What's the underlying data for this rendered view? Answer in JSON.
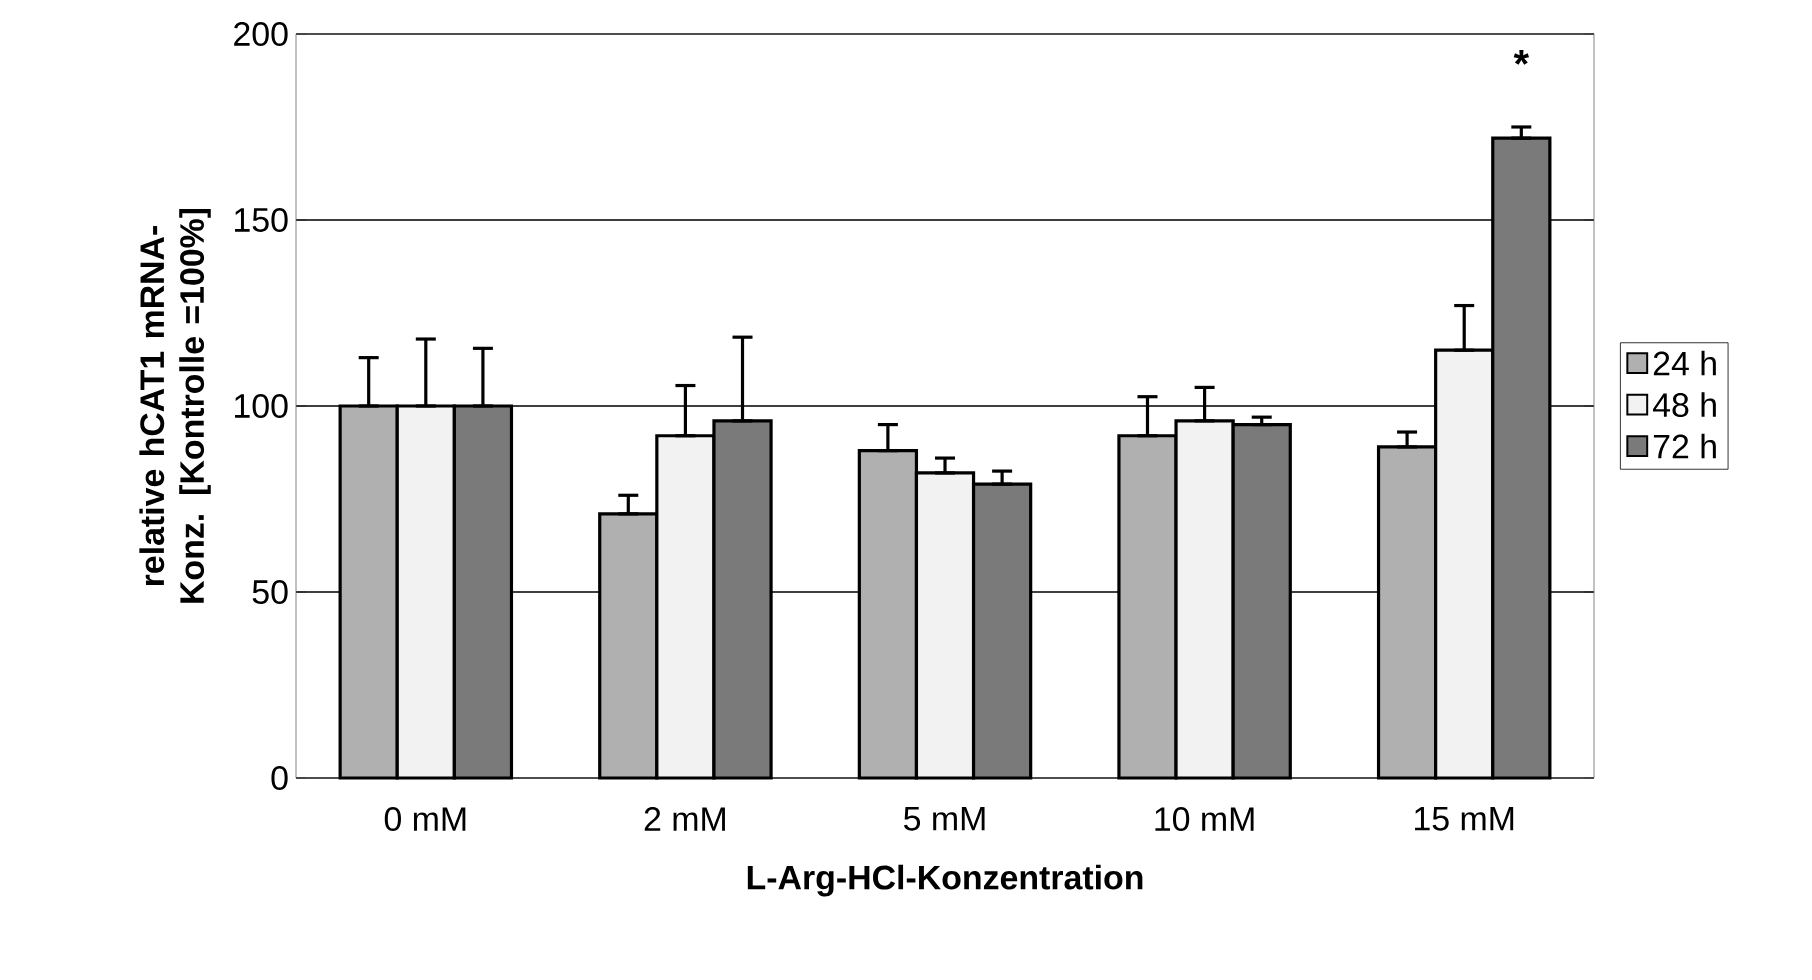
{
  "chart_data": {
    "type": "bar",
    "xlabel": "L-Arg-HCl-Konzentration",
    "ylabel": "relative hCAT1 mRNA-Konz. [Kontrolle =100%]",
    "categories": [
      "0 mM",
      "2 mM",
      "5 mM",
      "10 mM",
      "15 mM"
    ],
    "series": [
      {
        "name": "24 h",
        "color": "#b0b0b0",
        "values": [
          100,
          71,
          88,
          92,
          89
        ],
        "errors": [
          [
            100,
            113
          ],
          [
            71,
            76
          ],
          [
            88,
            95
          ],
          [
            92,
            102.5
          ],
          [
            89,
            93
          ]
        ]
      },
      {
        "name": "48 h",
        "color": "#f2f2f2",
        "values": [
          100,
          92,
          82,
          96,
          115
        ],
        "errors": [
          [
            100,
            118
          ],
          [
            92,
            105.5
          ],
          [
            82,
            86
          ],
          [
            96,
            105
          ],
          [
            115,
            127
          ]
        ]
      },
      {
        "name": "72 h",
        "color": "#7a7a7a",
        "values": [
          100,
          96,
          79,
          95,
          172
        ],
        "errors": [
          [
            100,
            115.5
          ],
          [
            96,
            118.5
          ],
          [
            79,
            82.5
          ],
          [
            95,
            97
          ],
          [
            172,
            175
          ]
        ]
      }
    ],
    "ylim": [
      0,
      200
    ],
    "yticks": [
      0,
      50,
      100,
      150,
      200
    ],
    "grid": "y",
    "legend": "right",
    "annotations": [
      "*"
    ]
  }
}
